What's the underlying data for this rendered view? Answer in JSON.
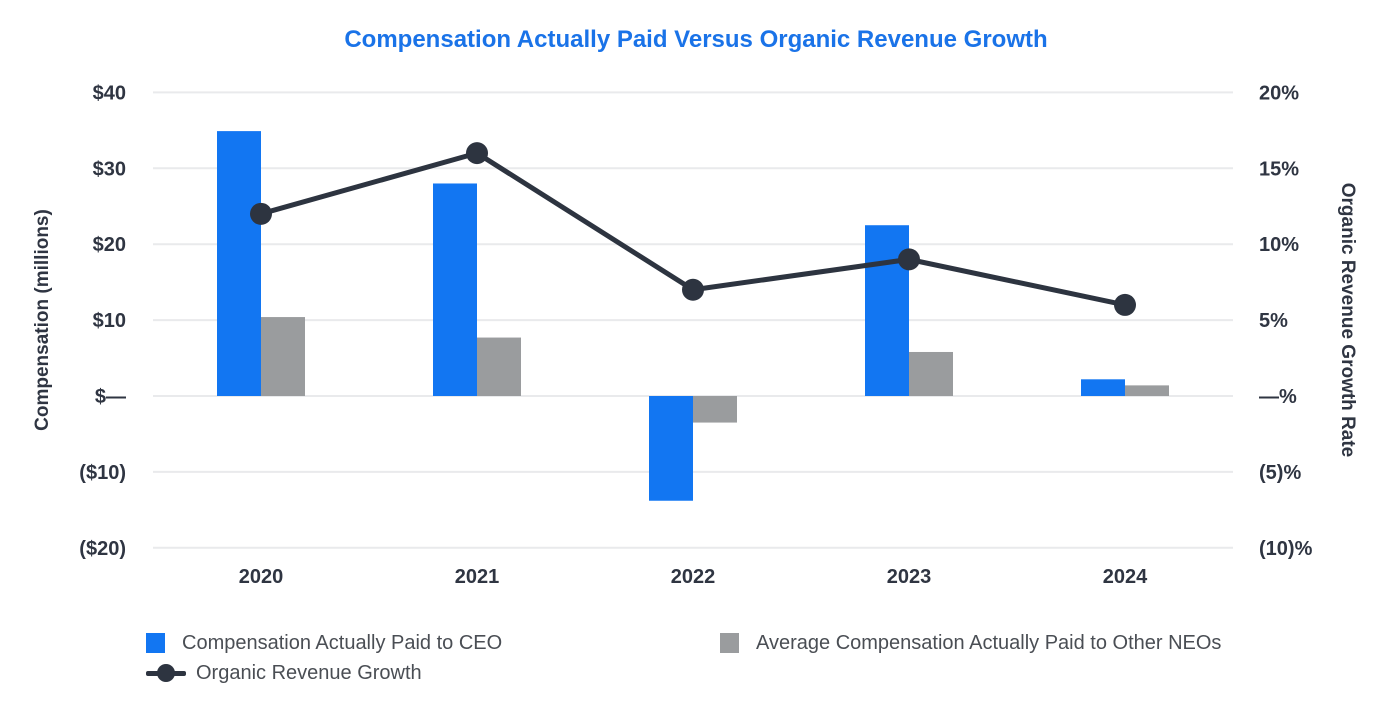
{
  "title": "Compensation Actually Paid Versus Organic Revenue Growth",
  "colors": {
    "title": "#1a73e8",
    "ceo_bar": "#1276f2",
    "neo_bar": "#9a9c9e",
    "line": "#2d3440",
    "grid": "#e9eaec",
    "tick_text": "#2f3542",
    "legend_text": "#4a4e54"
  },
  "left_axis": {
    "title": "Compensation (millions)",
    "min": -20,
    "max": 40,
    "ticks": [
      {
        "label": "$40",
        "value": 40
      },
      {
        "label": "$30",
        "value": 30
      },
      {
        "label": "$20",
        "value": 20
      },
      {
        "label": "$10",
        "value": 10
      },
      {
        "label": "$—",
        "value": 0
      },
      {
        "label": "($10)",
        "value": -10
      },
      {
        "label": "($20)",
        "value": -20
      }
    ]
  },
  "right_axis": {
    "title": "Organic Revenue Growth Rate",
    "min": -10,
    "max": 20,
    "ticks": [
      {
        "label": "20%",
        "value": 20
      },
      {
        "label": "15%",
        "value": 15
      },
      {
        "label": "10%",
        "value": 10
      },
      {
        "label": "5%",
        "value": 5
      },
      {
        "label": "—%",
        "value": 0
      },
      {
        "label": "(5)%",
        "value": -5
      },
      {
        "label": "(10)%",
        "value": -10
      }
    ]
  },
  "chart_data": {
    "type": "bar",
    "subtype": "grouped-bar-with-line-combo",
    "categories": [
      "2020",
      "2021",
      "2022",
      "2023",
      "2024"
    ],
    "series": [
      {
        "name": "Compensation Actually Paid to CEO",
        "type": "bar",
        "axis": "left",
        "units": "USD millions",
        "values": [
          34.9,
          28.0,
          -13.8,
          22.5,
          2.2
        ]
      },
      {
        "name": "Average Compensation Actually Paid to Other NEOs",
        "type": "bar",
        "axis": "left",
        "units": "USD millions",
        "values": [
          10.4,
          7.7,
          -3.5,
          5.8,
          1.4
        ]
      },
      {
        "name": "Organic Revenue Growth",
        "type": "line",
        "axis": "right",
        "units": "percent",
        "values": [
          12,
          16,
          7,
          9,
          6
        ]
      }
    ],
    "title": "Compensation Actually Paid Versus Organic Revenue Growth",
    "xlabel": "",
    "ylabel_left": "Compensation (millions)",
    "ylabel_right": "Organic Revenue Growth Rate",
    "ylim_left": [
      -20,
      40
    ],
    "ylim_right": [
      -10,
      20
    ],
    "grid": "horizontal",
    "legend_position": "bottom-left"
  }
}
